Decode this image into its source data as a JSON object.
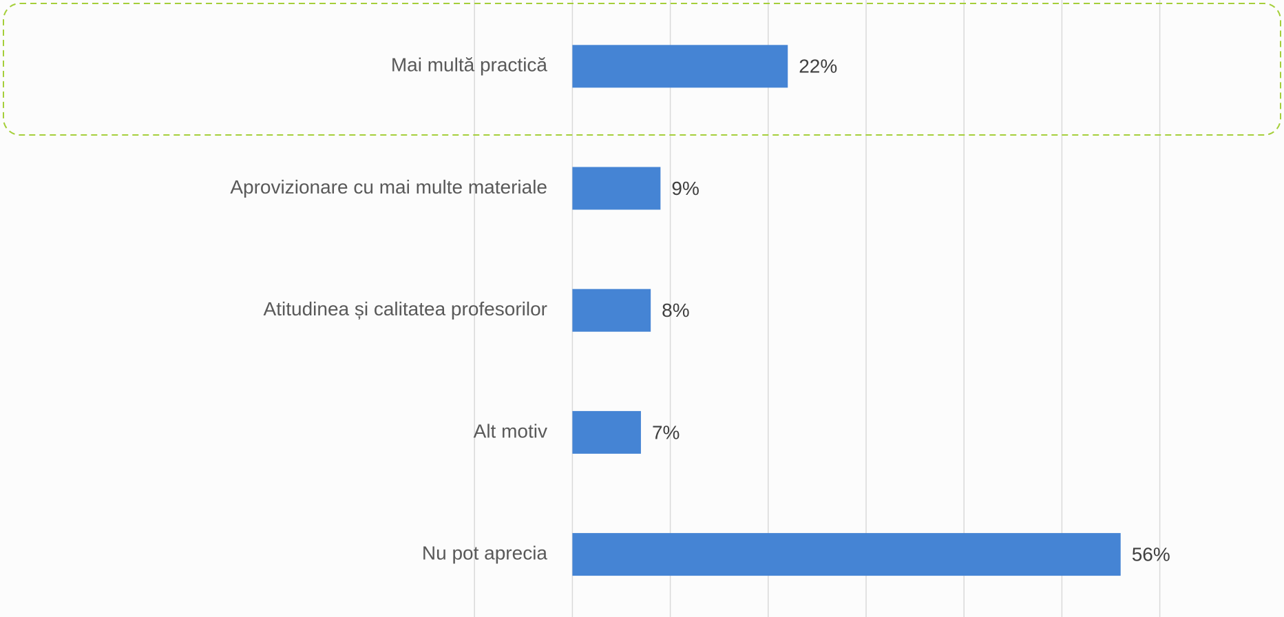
{
  "chart_data": {
    "type": "bar",
    "categories": [
      "Mai multă practică",
      "Aprovizionare cu mai multe materiale",
      "Atitudinea și calitatea profesorilor",
      "Alt motiv",
      "Nu pot aprecia"
    ],
    "values": [
      22,
      9,
      8,
      7,
      56
    ],
    "value_labels": [
      "22%",
      "9%",
      "8%",
      "7%",
      "56%"
    ],
    "color": "#4584d4",
    "xlim": [
      -10,
      70
    ],
    "xticks": [
      -10,
      0,
      10,
      20,
      30,
      40,
      50,
      60
    ],
    "grid": true
  }
}
